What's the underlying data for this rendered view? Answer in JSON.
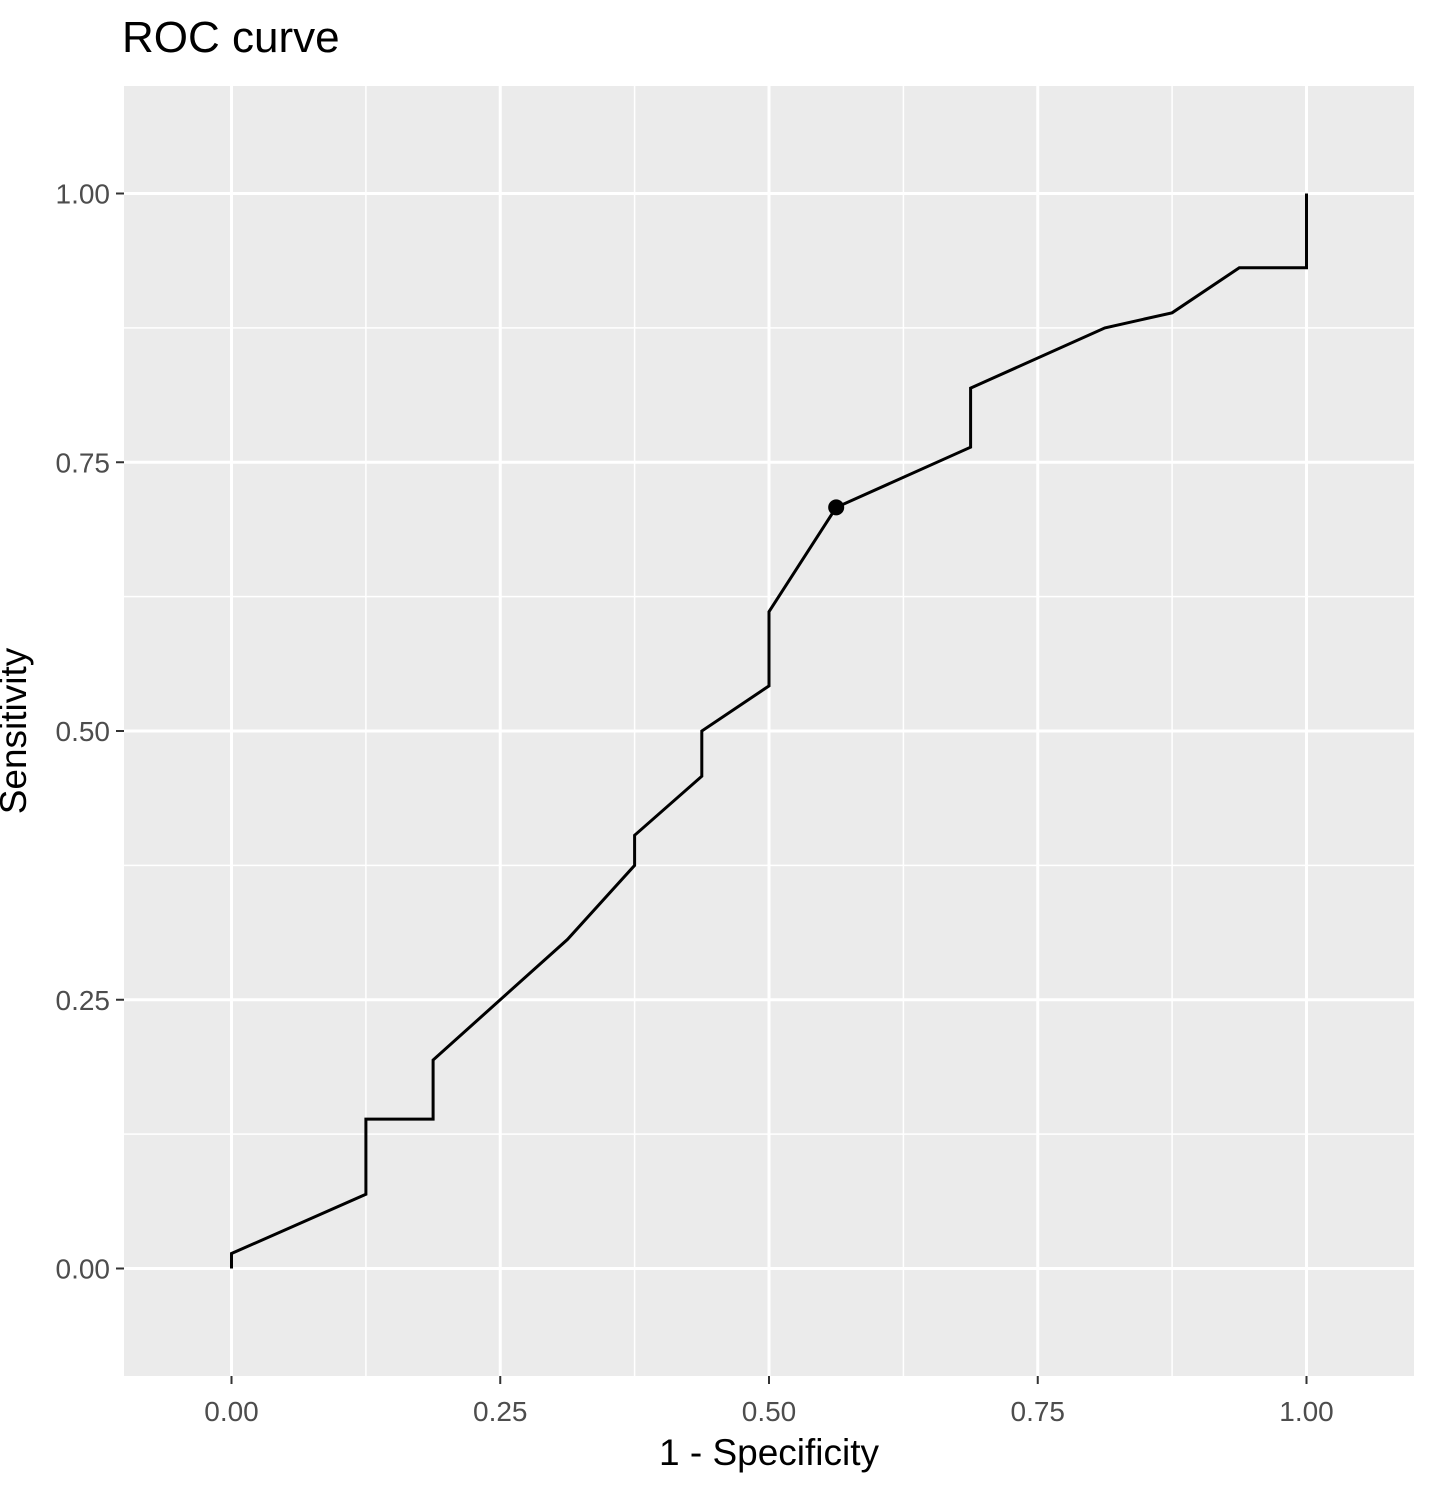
{
  "chart_data": {
    "type": "line",
    "title": "ROC curve",
    "xlabel": "1 - Specificity",
    "ylabel": "Sensitivity",
    "xlim": [
      -0.1,
      1.1
    ],
    "ylim": [
      -0.1,
      1.1
    ],
    "x_ticks": [
      0,
      0.25,
      0.5,
      0.75,
      1
    ],
    "x_tick_labels": [
      "0.00",
      "0.25",
      "0.50",
      "0.75",
      "1.00"
    ],
    "y_ticks": [
      0,
      0.25,
      0.5,
      0.75,
      1
    ],
    "y_tick_labels": [
      "0.00",
      "0.25",
      "0.50",
      "0.75",
      "1.00"
    ],
    "grid": true,
    "series": [
      {
        "x": [
          0,
          0,
          0.125,
          0.125,
          0.1875,
          0.1875,
          0.3125,
          0.375,
          0.375,
          0.4375,
          0.4375,
          0.5,
          0.5,
          0.5625,
          0.6875,
          0.6875,
          0.8125,
          0.875,
          0.9375,
          1,
          1
        ],
        "y": [
          0,
          0.014,
          0.069,
          0.139,
          0.139,
          0.194,
          0.306,
          0.375,
          0.403,
          0.458,
          0.5,
          0.542,
          0.611,
          0.708,
          0.764,
          0.819,
          0.875,
          0.889,
          0.931,
          0.931,
          1
        ]
      }
    ],
    "highlight_point": {
      "x": 0.5625,
      "y": 0.708
    },
    "colors": {
      "panel": "#ebebeb",
      "grid": "#ffffff",
      "line": "#000000",
      "point": "#000000"
    }
  }
}
